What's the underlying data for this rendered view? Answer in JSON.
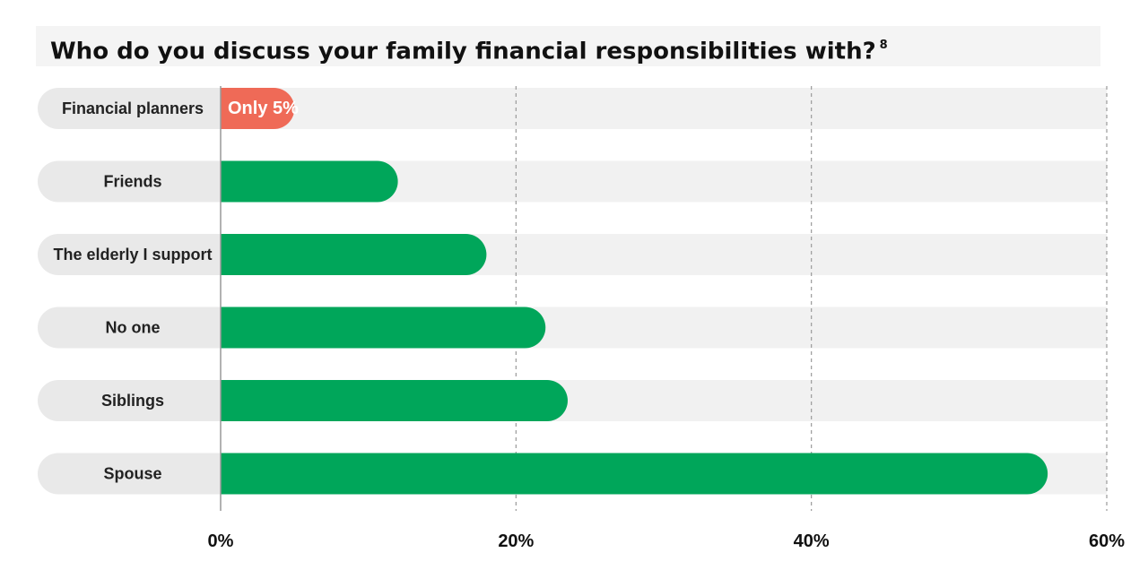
{
  "title": "Who do you discuss your family financial responsibilities with?",
  "footnote": "8",
  "colors": {
    "highlight": "#ef6a57",
    "bar": "#00a65a",
    "track": "#f1f1f1",
    "label_pill": "#e9e9e9",
    "grid": "#9a9a9a",
    "axis": "#999999"
  },
  "chart_data": {
    "type": "bar",
    "orientation": "horizontal",
    "title": "Who do you discuss your family financial responsibilities with?",
    "xlabel": "",
    "ylabel": "",
    "categories": [
      "Financial planners",
      "Friends",
      "The elderly I support",
      "No one",
      "Siblings",
      "Spouse"
    ],
    "values": [
      5,
      12,
      18,
      22,
      23.5,
      56
    ],
    "highlight_index": 0,
    "data_labels": [
      "Only 5%",
      "",
      "",
      "",
      "",
      ""
    ],
    "xlim": [
      0,
      60
    ],
    "xticks": [
      0,
      20,
      40,
      60
    ],
    "xtick_labels": [
      "0%",
      "20%",
      "40%",
      "60%"
    ],
    "grid": true,
    "legend": "none"
  }
}
